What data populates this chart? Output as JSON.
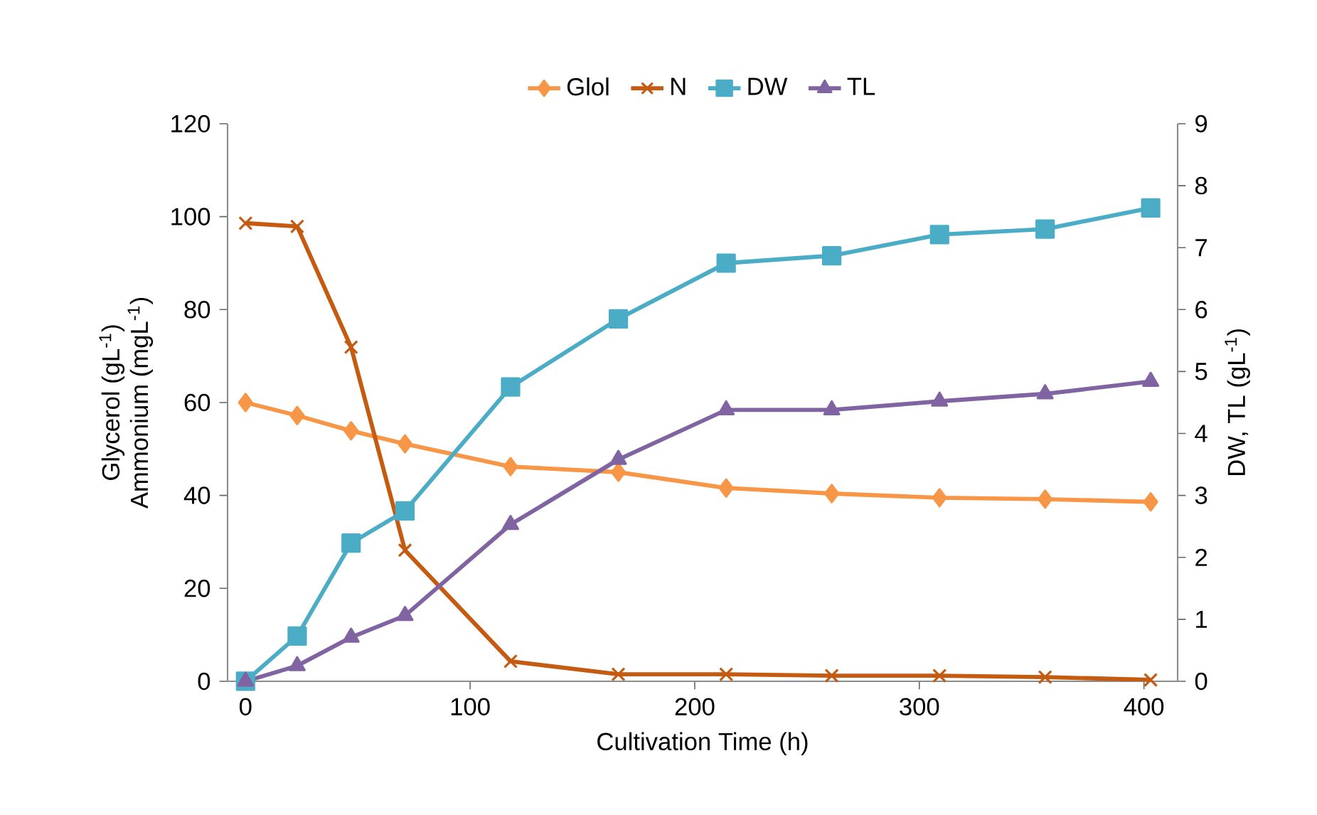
{
  "chart_data": {
    "type": "line",
    "xlabel": "Cultivation Time (h)",
    "ylabel": [
      "Glycerol (gL$^{-1}$)",
      "Ammonium (mgL$^{-1}$)"
    ],
    "y2label": "DW, TL (gL$^{-1}$)",
    "x": [
      0,
      23,
      47,
      71,
      118,
      166,
      214,
      261,
      309,
      356,
      403
    ],
    "series": [
      {
        "name": "Glol",
        "color": "#f79646",
        "marker": "diamond",
        "values": [
          60,
          57.2,
          53.9,
          51.1,
          46.2,
          45.0,
          41.6,
          40.4,
          39.5,
          39.2,
          38.6
        ]
      },
      {
        "name": "N",
        "color": "#c55a11",
        "marker": "cross",
        "values": [
          98.6,
          97.9,
          71.9,
          28.2,
          4.3,
          1.5,
          1.5,
          1.2,
          1.2,
          0.9,
          0.3
        ]
      },
      {
        "name": "DW",
        "color": "#4bacc6",
        "marker": "square",
        "axis": "y2",
        "values": [
          0,
          0.73,
          2.23,
          2.75,
          4.75,
          5.85,
          6.75,
          6.87,
          7.21,
          7.3,
          7.64
        ]
      },
      {
        "name": "TL",
        "color": "#8064a2",
        "marker": "triangle",
        "axis": "y2",
        "values": [
          0,
          0.25,
          0.71,
          1.06,
          2.53,
          3.58,
          4.38,
          4.38,
          4.52,
          4.64,
          4.84
        ]
      }
    ],
    "xlim": [
      -8,
      415
    ],
    "xticks": [
      0,
      100,
      200,
      300,
      400
    ],
    "ylim": [
      0,
      120
    ],
    "yticks": [
      0,
      20,
      40,
      60,
      80,
      100,
      120
    ],
    "y2lim": [
      0,
      9
    ],
    "y2ticks": [
      0,
      1,
      2,
      3,
      4,
      5,
      6,
      7,
      8,
      9
    ],
    "grid": false,
    "legend": "top",
    "line_style": "solid"
  }
}
